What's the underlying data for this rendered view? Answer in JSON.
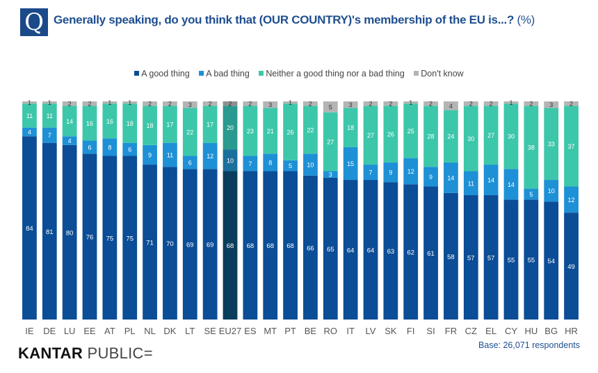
{
  "question_icon": "Q",
  "title": "Generally speaking, do you think that (OUR COUNTRY)'s membership of the EU is...?",
  "title_unit": "(%)",
  "base_note": "Base: 26,071 respondents",
  "brand": {
    "name_bold": "KANTAR",
    "name_light": "PUBLIC="
  },
  "chart_data": {
    "type": "bar",
    "stacked": true,
    "unit": "%",
    "categories": [
      "IE",
      "DE",
      "LU",
      "EE",
      "AT",
      "PL",
      "NL",
      "DK",
      "LT",
      "SE",
      "EU27",
      "ES",
      "MT",
      "PT",
      "BE",
      "RO",
      "IT",
      "LV",
      "SK",
      "FI",
      "SI",
      "FR",
      "CZ",
      "EL",
      "CY",
      "HU",
      "BG",
      "HR"
    ],
    "series": [
      {
        "name": "A good thing",
        "color": "#0b4d96",
        "values": [
          84,
          81,
          80,
          76,
          75,
          75,
          71,
          70,
          69,
          69,
          68,
          68,
          68,
          68,
          66,
          65,
          64,
          64,
          63,
          62,
          61,
          58,
          57,
          57,
          55,
          55,
          54,
          49
        ]
      },
      {
        "name": "A bad thing",
        "color": "#1e90d6",
        "values": [
          4,
          7,
          4,
          6,
          8,
          6,
          9,
          11,
          6,
          12,
          10,
          7,
          8,
          5,
          10,
          3,
          15,
          7,
          9,
          12,
          9,
          14,
          11,
          14,
          14,
          5,
          10,
          12
        ]
      },
      {
        "name": "Neither a good thing nor a bad thing",
        "color": "#3dc7aa",
        "values": [
          11,
          11,
          14,
          16,
          16,
          18,
          18,
          17,
          22,
          17,
          20,
          23,
          21,
          26,
          22,
          27,
          18,
          27,
          26,
          25,
          28,
          24,
          30,
          27,
          30,
          38,
          33,
          37
        ]
      },
      {
        "name": "Don't know",
        "color": "#b4b4b4",
        "values": [
          1,
          1,
          2,
          2,
          1,
          1,
          2,
          2,
          3,
          2,
          2,
          2,
          3,
          1,
          2,
          5,
          3,
          2,
          2,
          1,
          2,
          4,
          2,
          2,
          1,
          2,
          3,
          2
        ]
      }
    ],
    "highlight_category": "EU27",
    "highlight_colors": [
      "#0a3d5c",
      "#1a6f9c",
      "#2a9a90",
      "#8f8f8f"
    ],
    "ylim": [
      0,
      100
    ],
    "legend_position": "top"
  }
}
